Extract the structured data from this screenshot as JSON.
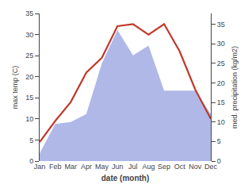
{
  "chart_data": {
    "type": "line",
    "categories": [
      "Jan",
      "Feb",
      "Mar",
      "Apr",
      "May",
      "Jun",
      "Jul",
      "Aug",
      "Sep",
      "Oct",
      "Nov",
      "Dec"
    ],
    "series": [
      {
        "type": "area",
        "color": "#b0b8e8",
        "axis": "y2",
        "values": [
          2,
          9.5,
          10,
          12,
          25,
          33.5,
          27,
          29.5,
          18,
          18,
          18,
          12
        ]
      },
      {
        "type": "line",
        "color": "#c0392b",
        "values": [
          4.5,
          9.5,
          14,
          21,
          24.5,
          32,
          32.5,
          30,
          32.5,
          26,
          17,
          10
        ]
      }
    ],
    "xlabel": "date (month)",
    "ylabel": "max temp (C)",
    "y2label": "med. precipitation (kg/m2)",
    "ylim": [
      0,
      35
    ],
    "yticks": [
      0,
      5,
      10,
      15,
      20,
      25,
      30,
      35
    ],
    "y2lim": [
      0,
      37.708
    ],
    "y2ticks": [
      0,
      5,
      10,
      15,
      20,
      25,
      30,
      35
    ],
    "grid": false
  }
}
